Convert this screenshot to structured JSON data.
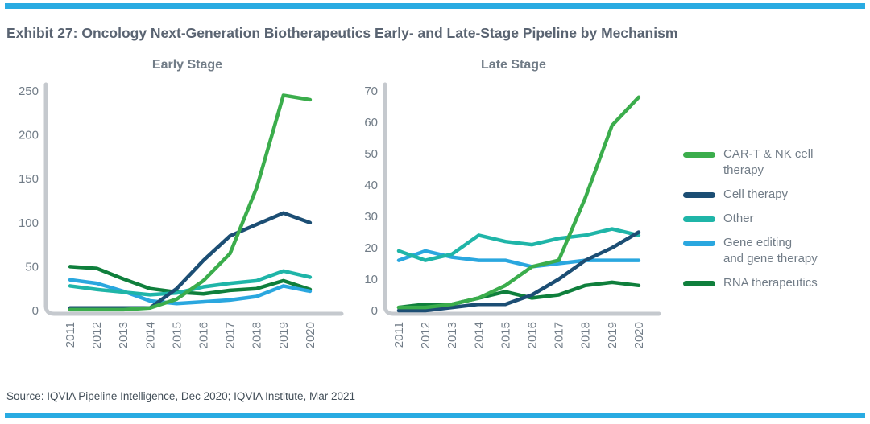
{
  "page": {
    "title": "Exhibit 27: Oncology Next-Generation Biotherapeutics Early- and Late-Stage Pipeline by Mechanism",
    "source": "Source: IQVIA Pipeline Intelligence, Dec 2020; IQVIA Institute, Mar 2021"
  },
  "colors": {
    "accent_bar": "#29ABE2",
    "title_text": "#5A6472",
    "chart_text": "#717C87",
    "source_text": "#424E58",
    "axis_line": "#C5C9CE",
    "series": {
      "car_t": "#3BAD4C",
      "cell_therapy": "#1C4E74",
      "other": "#1FB5A8",
      "gene_editing": "#2AA7DF",
      "rna": "#0F7F3C"
    }
  },
  "chart_data": [
    {
      "type": "line",
      "title": "Early Stage",
      "categories": [
        "2011",
        "2012",
        "2013",
        "2014",
        "2015",
        "2016",
        "2017",
        "2018",
        "2019",
        "2020"
      ],
      "ylim": [
        0,
        250
      ],
      "yticks": [
        0,
        50,
        100,
        150,
        200,
        250
      ],
      "grid": false,
      "series": [
        {
          "name": "CAR-T & NK cell therapy",
          "key": "car_t",
          "values": [
            1,
            1,
            1,
            3,
            13,
            34,
            65,
            140,
            245,
            240
          ]
        },
        {
          "name": "Cell therapy",
          "key": "cell_therapy",
          "values": [
            3,
            3,
            3,
            3,
            25,
            57,
            85,
            98,
            111,
            100
          ]
        },
        {
          "name": "Other",
          "key": "other",
          "values": [
            28,
            24,
            21,
            18,
            20,
            27,
            31,
            34,
            45,
            38
          ]
        },
        {
          "name": "Gene editing and gene therapy",
          "key": "gene_editing",
          "values": [
            35,
            31,
            22,
            11,
            8,
            10,
            12,
            16,
            28,
            22
          ]
        },
        {
          "name": "RNA therapeutics",
          "key": "rna",
          "values": [
            50,
            48,
            36,
            25,
            21,
            19,
            23,
            25,
            34,
            24
          ]
        }
      ]
    },
    {
      "type": "line",
      "title": "Late Stage",
      "categories": [
        "2011",
        "2012",
        "2013",
        "2014",
        "2015",
        "2016",
        "2017",
        "2018",
        "2019",
        "2020"
      ],
      "ylim": [
        0,
        70
      ],
      "yticks": [
        0,
        10,
        20,
        30,
        40,
        50,
        60,
        70
      ],
      "grid": false,
      "series": [
        {
          "name": "CAR-T & NK cell therapy",
          "key": "car_t",
          "values": [
            1,
            1,
            2,
            4,
            8,
            14,
            16,
            36,
            59,
            68
          ]
        },
        {
          "name": "Cell therapy",
          "key": "cell_therapy",
          "values": [
            0,
            0,
            1,
            2,
            2,
            5,
            10,
            16,
            20,
            25
          ]
        },
        {
          "name": "Other",
          "key": "other",
          "values": [
            19,
            16,
            18,
            24,
            22,
            21,
            23,
            24,
            26,
            24
          ]
        },
        {
          "name": "Gene editing and gene therapy",
          "key": "gene_editing",
          "values": [
            16,
            19,
            17,
            16,
            16,
            14,
            15,
            16,
            16,
            16
          ]
        },
        {
          "name": "RNA therapeutics",
          "key": "rna",
          "values": [
            1,
            2,
            2,
            4,
            6,
            4,
            5,
            8,
            9,
            8
          ]
        }
      ]
    }
  ],
  "legend": {
    "items": [
      {
        "key": "car_t",
        "lines": [
          "CAR-T & NK cell",
          "therapy"
        ]
      },
      {
        "key": "cell_therapy",
        "lines": [
          "Cell therapy"
        ]
      },
      {
        "key": "other",
        "lines": [
          "Other"
        ]
      },
      {
        "key": "gene_editing",
        "lines": [
          "Gene editing",
          "and gene therapy"
        ]
      },
      {
        "key": "rna",
        "lines": [
          "RNA therapeutics"
        ]
      }
    ]
  }
}
